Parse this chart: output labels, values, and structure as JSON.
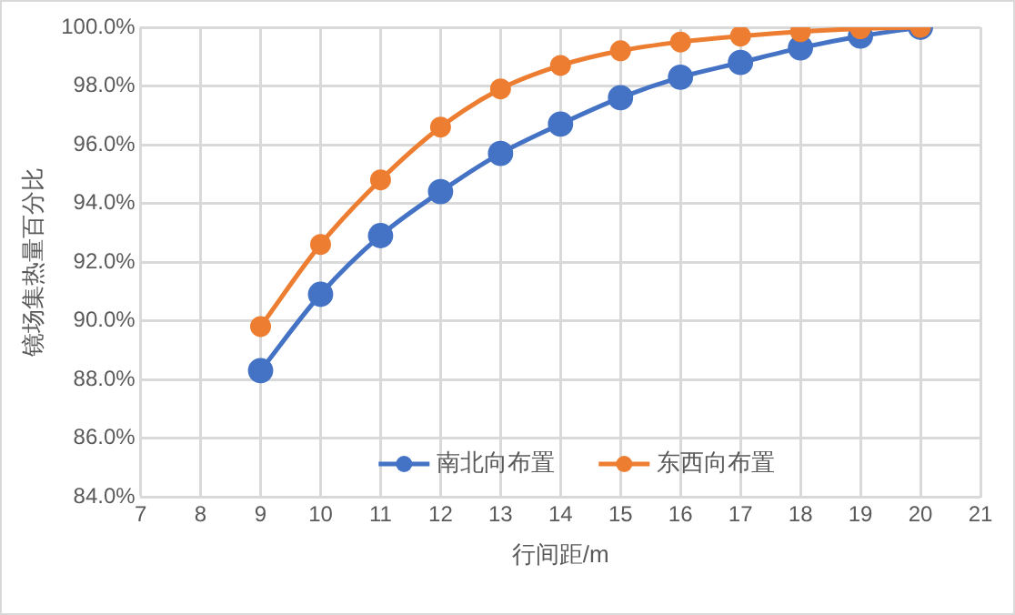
{
  "chart_data": {
    "type": "line",
    "xlabel": "行间距/m",
    "ylabel": "镜场集热量百分比",
    "x": [
      9,
      10,
      11,
      12,
      13,
      14,
      15,
      16,
      17,
      18,
      19,
      20
    ],
    "series": [
      {
        "name": "南北向布置",
        "color": "#4472c4",
        "values": [
          88.3,
          90.9,
          92.9,
          94.4,
          95.7,
          96.7,
          97.6,
          98.3,
          98.8,
          99.3,
          99.7,
          100
        ]
      },
      {
        "name": "东西向布置",
        "color": "#ed7d31",
        "values": [
          89.8,
          92.6,
          94.8,
          96.6,
          97.9,
          98.7,
          99.2,
          99.5,
          99.7,
          99.85,
          99.95,
          100
        ]
      }
    ],
    "xlim": [
      7,
      21
    ],
    "xticks": [
      7,
      8,
      9,
      10,
      11,
      12,
      13,
      14,
      15,
      16,
      17,
      18,
      19,
      20,
      21
    ],
    "ylim": [
      84,
      100
    ],
    "yticks": [
      {
        "value": 84,
        "label": "84.0%"
      },
      {
        "value": 86,
        "label": "86.0%"
      },
      {
        "value": 88,
        "label": "88.0%"
      },
      {
        "value": 90,
        "label": "90.0%"
      },
      {
        "value": 92,
        "label": "92.0%"
      },
      {
        "value": 94,
        "label": "94.0%"
      },
      {
        "value": 96,
        "label": "96.0%"
      },
      {
        "value": 98,
        "label": "98.0%"
      },
      {
        "value": 100,
        "label": "100.0%"
      }
    ],
    "grid": true,
    "legend": "bottom",
    "marker": "circle",
    "line_style": "solid"
  }
}
